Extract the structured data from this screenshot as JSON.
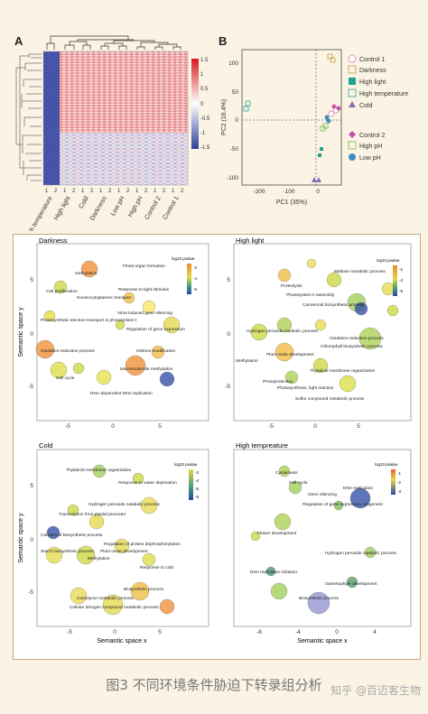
{
  "panel_a": {
    "label": "A",
    "samples": [
      "High temperature",
      "High light",
      "Cold",
      "Darkness",
      "Low pH",
      "High pH",
      "Control 2",
      "Control 1"
    ],
    "replicates": [
      "1",
      "2"
    ],
    "colorbar_ticks": [
      "1.5",
      "1",
      "0.5",
      "0",
      "-0.5",
      "-1",
      "-1.5"
    ]
  },
  "panel_b": {
    "label": "B",
    "xlabel": "PC1 (35%)",
    "ylabel": "PC2 (16.4%)",
    "xticks": [
      "-200",
      "-100",
      "0"
    ],
    "yticks": [
      "100",
      "50",
      "0",
      "-50",
      "-100"
    ],
    "legend": [
      "Control 1",
      "Darkness",
      "High light",
      "High temperature",
      "Cold",
      "Control 2",
      "High pH",
      "Low pH"
    ]
  },
  "go_plots": [
    {
      "title": "Darkness",
      "legend_title": "log10 pvalue",
      "legend_ticks": [
        "-2",
        "-4",
        "-6"
      ],
      "xticks": [
        "-5",
        "0",
        "5"
      ],
      "yticks": [
        "5",
        "0",
        "-5"
      ],
      "ylabel": "Semantic space y",
      "terms": [
        "Floral organ formation",
        "methylation",
        "Response to light stimulus",
        "Cell proliferation",
        "Nucleocytoplasmic transport",
        "Virus induced gene silencing",
        "Photosynthetic electron transport in photosystem I",
        "Regulation of gene expression",
        "Histone modification",
        "Oxidation-reduction process",
        "Macromolecule methylation",
        "Cell cycle",
        "DNA-dependent DNA replication"
      ]
    },
    {
      "title": "High light",
      "legend_title": "log10 pvalue",
      "legend_ticks": [
        "-2",
        "-4",
        "-6"
      ],
      "xticks": [
        "-5",
        "0",
        "5"
      ],
      "yticks": [
        "5",
        "0",
        "-5"
      ],
      "terms": [
        "Maltose metabolic process",
        "Proteolysis",
        "Photosystem II assembly",
        "Carotenoid biosynthetic process",
        "Hydrogen peroxide catabolic process",
        "Oxidation-reduction process",
        "Chlorophyll biosynthetic process",
        "Plant ovule development",
        "Methylation",
        "Thylakoid membrane organization",
        "Photoprotection",
        "Photosynthesis, light reaction",
        "Sulfur compound metabolic process"
      ]
    },
    {
      "title": "Cold",
      "legend_title": "log10 pvalue",
      "legend_ticks": [
        "-2",
        "-4",
        "-6",
        "-8"
      ],
      "xticks": [
        "-5",
        "0",
        "5"
      ],
      "yticks": [
        "5",
        "0",
        "-5"
      ],
      "ylabel": "Semantic space y",
      "xlabel": "Semantic space x",
      "terms": [
        "Thylakoid membrane organization",
        "Response to water deprivation",
        "Hydrogen peroxide catabolic process",
        "Transcription from plastid promoter",
        "Carotenoid biosynthetic process",
        "Regulation of protein dephosphorylation",
        "Starch biosynthetic process",
        "Plant ovule development",
        "Methylation",
        "Response to cold",
        "Biosynthetic process",
        "Coenzyme metabolic process",
        "Cellular nitrogen compound metabolic process"
      ]
    },
    {
      "title": "High tempreature",
      "legend_title": "log10 pvalue",
      "legend_ticks": [
        "-1",
        "-2",
        "-3"
      ],
      "xticks": [
        "-8",
        "-4",
        "0",
        "4"
      ],
      "yticks": [],
      "xlabel": "Semantic space x",
      "terms": [
        "Cytokinesis",
        "Cell cycle",
        "DNA replication",
        "Gene silencing",
        "Regulation of gene expression, epigenetic",
        "Flower development",
        "Hydrogen peroxide catabolic process",
        "DNA replication initiation",
        "Gametophyte development",
        "Biosynthetic process"
      ]
    }
  ],
  "caption": "图3 不同环境条件胁迫下转录组分析",
  "watermark": "知乎 @百迈客生物",
  "colors": {
    "background": "#fbf3e4",
    "frame": "#c9a884",
    "heat_high": "#d7191c",
    "heat_low": "#2c3e9e"
  }
}
